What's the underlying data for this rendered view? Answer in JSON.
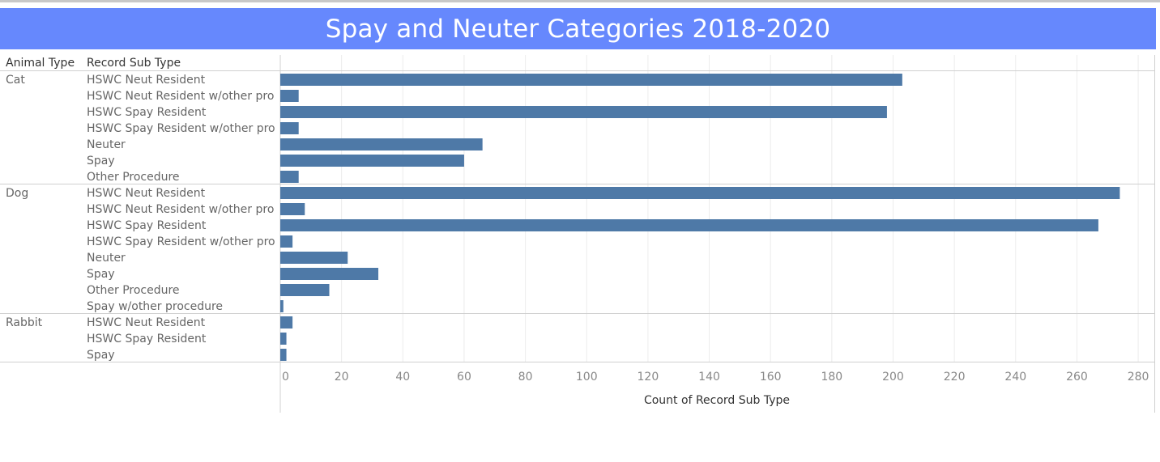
{
  "chart_data": {
    "type": "bar",
    "orientation": "horizontal",
    "title": "Spay and Neuter Categories 2018-2020",
    "row_headers": [
      "Animal Type",
      "Record Sub Type"
    ],
    "xlabel": "Count of Record Sub Type",
    "xlim": [
      0,
      285
    ],
    "xticks": [
      0,
      20,
      40,
      60,
      80,
      100,
      120,
      140,
      160,
      180,
      200,
      220,
      240,
      260,
      280
    ],
    "grid": "vertical",
    "bar_color": "#4e79a7",
    "groups": [
      {
        "name": "Cat",
        "rows": [
          {
            "label": "HSWC Neut Resident",
            "value": 203
          },
          {
            "label": "HSWC Neut Resident w/other pro",
            "value": 6
          },
          {
            "label": "HSWC Spay Resident",
            "value": 198
          },
          {
            "label": "HSWC Spay Resident w/other pro",
            "value": 6
          },
          {
            "label": "Neuter",
            "value": 66
          },
          {
            "label": "Spay",
            "value": 60
          },
          {
            "label": "Other Procedure",
            "value": 6
          }
        ]
      },
      {
        "name": "Dog",
        "rows": [
          {
            "label": "HSWC Neut Resident",
            "value": 274
          },
          {
            "label": "HSWC Neut Resident w/other pro",
            "value": 8
          },
          {
            "label": "HSWC Spay Resident",
            "value": 267
          },
          {
            "label": "HSWC Spay Resident w/other pro",
            "value": 4
          },
          {
            "label": "Neuter",
            "value": 22
          },
          {
            "label": "Spay",
            "value": 32
          },
          {
            "label": "Other Procedure",
            "value": 16
          },
          {
            "label": "Spay w/other procedure",
            "value": 1
          }
        ]
      },
      {
        "name": "Rabbit",
        "rows": [
          {
            "label": "HSWC Neut Resident",
            "value": 4
          },
          {
            "label": "HSWC Spay Resident",
            "value": 2
          },
          {
            "label": "Spay",
            "value": 2
          }
        ]
      }
    ]
  }
}
